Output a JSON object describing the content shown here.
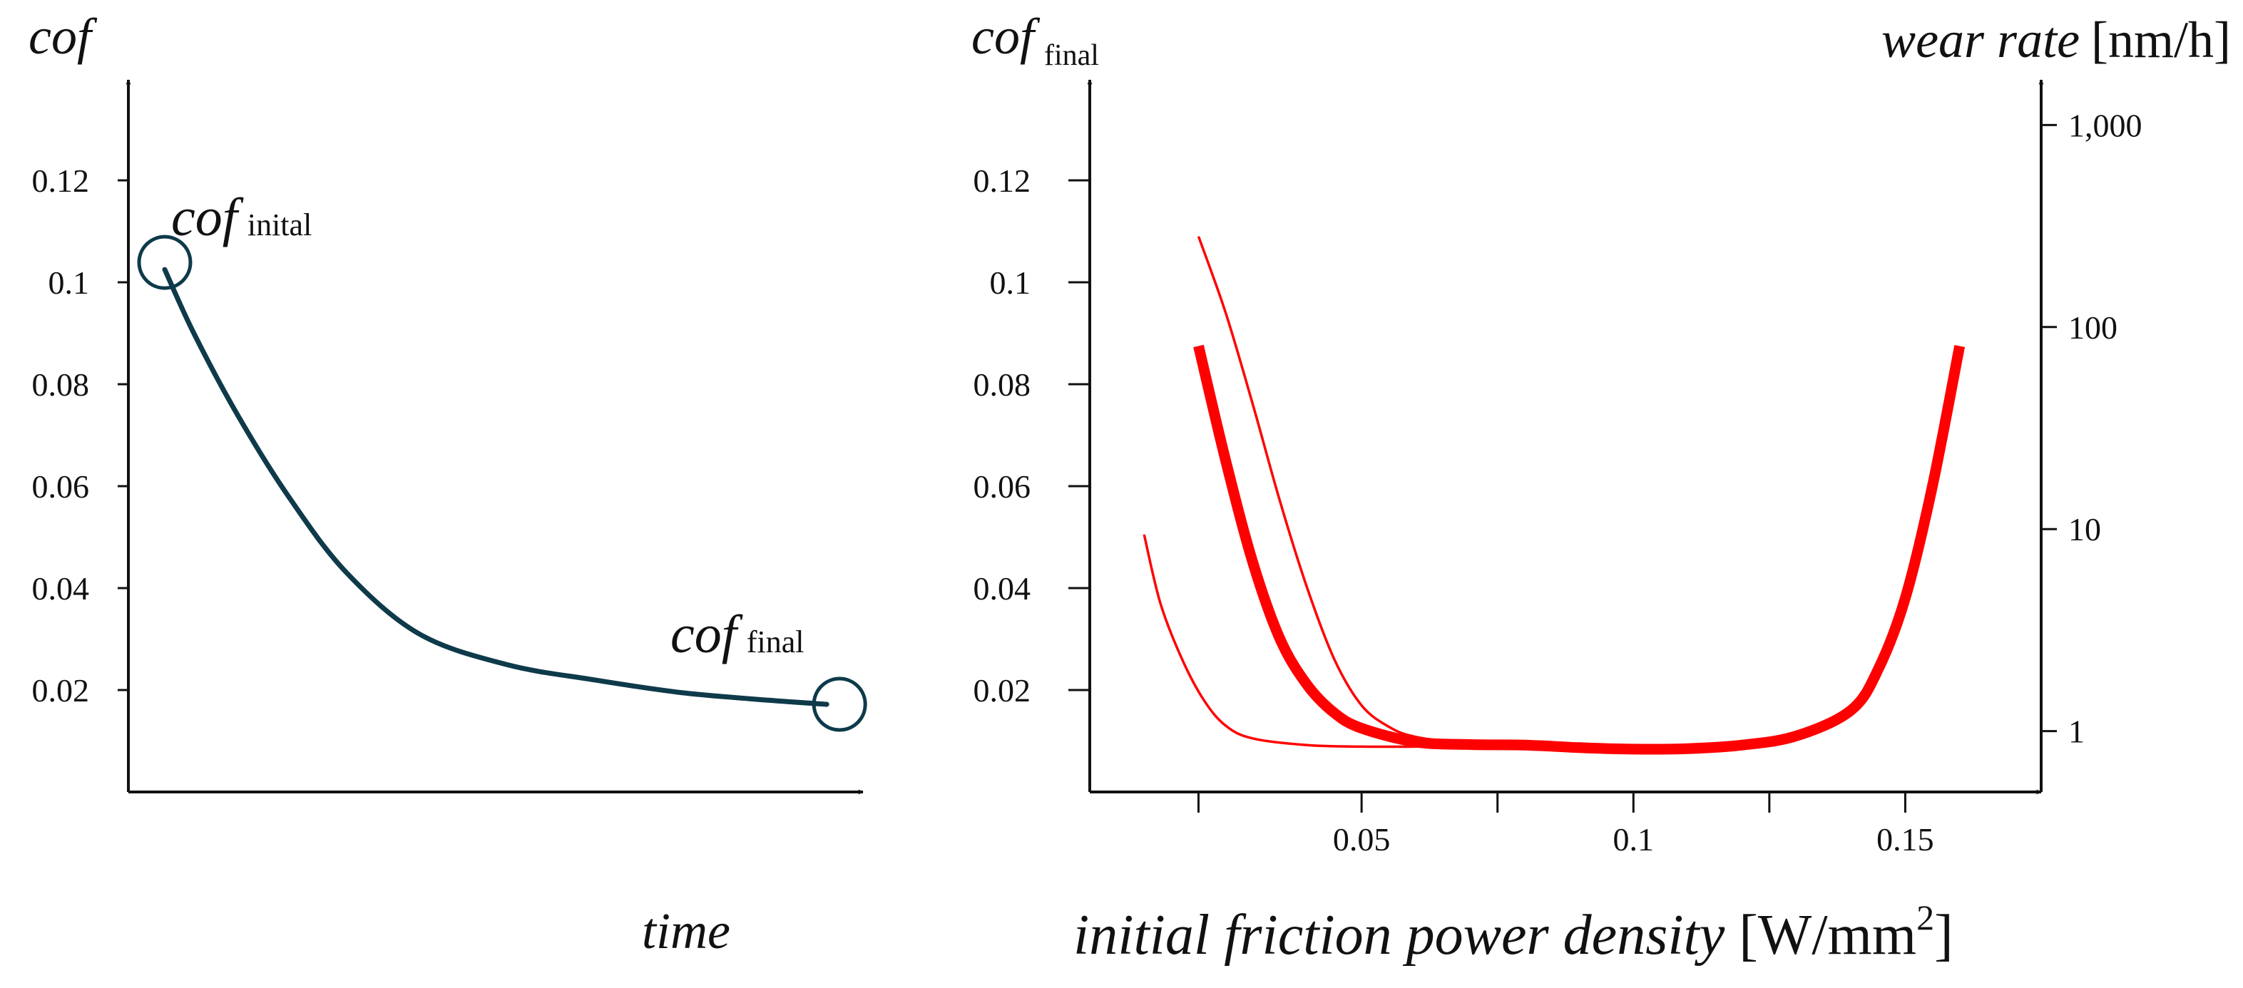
{
  "chart_data": [
    {
      "type": "line",
      "title": "",
      "ylabel": "cof",
      "xlabel": "time",
      "ylim": [
        0,
        0.14
      ],
      "yticks": [
        "0.02",
        "0.04",
        "0.06",
        "0.08",
        "0.1",
        "0.12"
      ],
      "ytick_values": [
        0.02,
        0.04,
        0.06,
        0.08,
        0.1,
        0.12
      ],
      "xlim": [
        0,
        1
      ],
      "series": [
        {
          "name": "cof",
          "color": "#0e3a4a",
          "x": [
            0.05,
            0.09,
            0.15,
            0.22,
            0.3,
            0.4,
            0.52,
            0.64,
            0.76,
            0.88,
            0.96
          ],
          "y": [
            0.1025,
            0.09,
            0.074,
            0.058,
            0.043,
            0.031,
            0.025,
            0.022,
            0.0195,
            0.018,
            0.0172
          ]
        }
      ],
      "annotations": [
        {
          "main": "cof",
          "sub": "inital",
          "x": 0.05,
          "y": 0.1025,
          "color": "#0e3a4a"
        },
        {
          "main": "cof",
          "sub": "final",
          "x": 0.96,
          "y": 0.0172,
          "color": "#0e3a4a"
        }
      ]
    },
    {
      "type": "line",
      "title": "",
      "ylabel_main": "cof",
      "ylabel_sub": "final",
      "y2label_main": "wear rate",
      "y2label_unit": "[nm/h]",
      "xlabel_main": "initial friction power density",
      "xlabel_unit_prefix": "[W/mm",
      "xlabel_unit_sup": "2",
      "xlabel_unit_suffix": "]",
      "xlim": [
        0,
        0.175
      ],
      "xticks": [
        "0.05",
        "0.1",
        "0.15"
      ],
      "xtick_values": [
        0.05,
        0.1,
        0.15
      ],
      "xminor_ticks": [
        0.02,
        0.075,
        0.125
      ],
      "ylim": [
        0,
        0.14
      ],
      "yticks": [
        "0.02",
        "0.04",
        "0.06",
        "0.08",
        "0.1",
        "0.12"
      ],
      "ytick_values": [
        0.02,
        0.04,
        0.06,
        0.08,
        0.1,
        0.12
      ],
      "y2scale": "log",
      "y2lim": [
        0.5,
        1700
      ],
      "y2ticks": [
        "1",
        "10",
        "100",
        "1,000"
      ],
      "y2tick_values": [
        1,
        10,
        100,
        1000
      ],
      "series": [
        {
          "name": "thick",
          "color": "#ff0000",
          "x": [
            0.02,
            0.025,
            0.03,
            0.035,
            0.04,
            0.045,
            0.05,
            0.06,
            0.07,
            0.08,
            0.09,
            0.1,
            0.11,
            0.12,
            0.13,
            0.14,
            0.145,
            0.15,
            0.155,
            0.16
          ],
          "y": [
            0.0875,
            0.065,
            0.045,
            0.03,
            0.021,
            0.0155,
            0.0125,
            0.0098,
            0.0093,
            0.0092,
            0.0087,
            0.0084,
            0.0085,
            0.0092,
            0.011,
            0.016,
            0.024,
            0.038,
            0.06,
            0.0875
          ]
        },
        {
          "name": "thin_upper",
          "color": "#ff0000",
          "x": [
            0.02,
            0.025,
            0.03,
            0.035,
            0.04,
            0.045,
            0.05,
            0.055,
            0.06,
            0.07,
            0.08,
            0.09
          ],
          "y": [
            0.109,
            0.094,
            0.076,
            0.057,
            0.04,
            0.026,
            0.017,
            0.0128,
            0.0108,
            0.0095,
            0.0091,
            0.009
          ]
        },
        {
          "name": "thin_lower",
          "color": "#ff0000",
          "x": [
            0.01,
            0.013,
            0.017,
            0.021,
            0.025,
            0.03,
            0.04,
            0.05,
            0.06,
            0.07
          ],
          "y": [
            0.0505,
            0.037,
            0.026,
            0.018,
            0.013,
            0.0105,
            0.0092,
            0.0089,
            0.0089,
            0.009
          ]
        }
      ]
    }
  ]
}
